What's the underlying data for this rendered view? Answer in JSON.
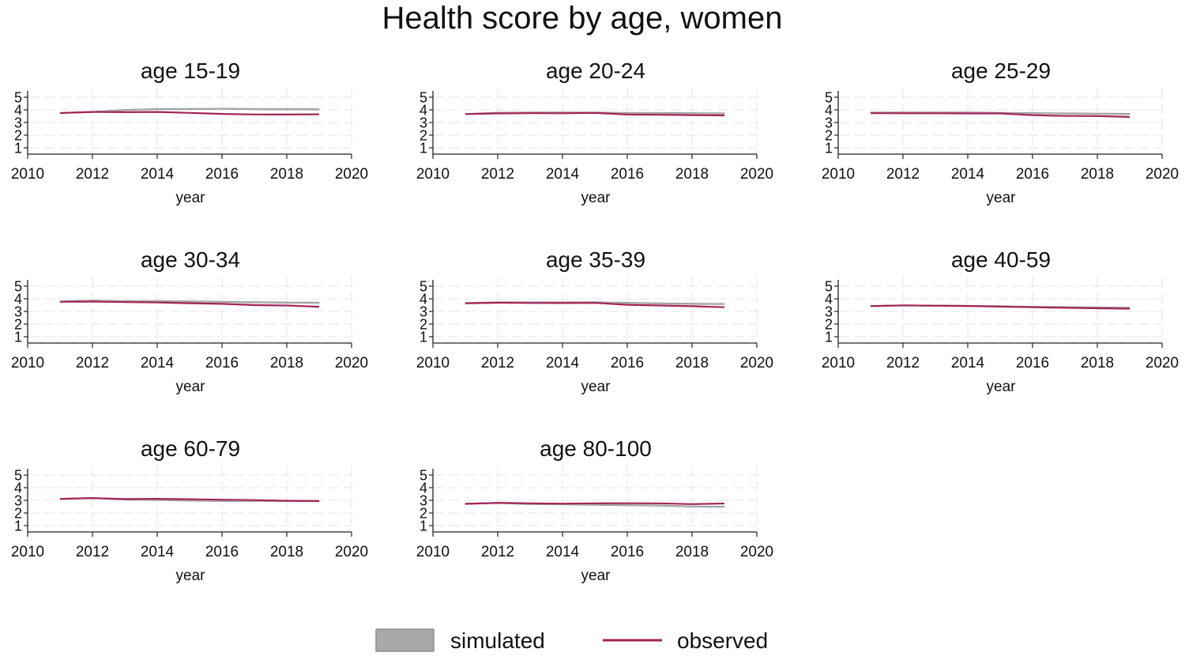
{
  "figure_title": "Health score by age, women",
  "legend": {
    "simulated_label": "simulated",
    "observed_label": "observed"
  },
  "colors": {
    "simulated_band": "#a9a9a9",
    "simulated_band_edge": "#8c8c8c",
    "observed_line": "#a3245a",
    "grid": "#e6e6e6",
    "axis": "#222222"
  },
  "chart_data": [
    {
      "type": "line",
      "title": "age 15-19",
      "xlabel": "year",
      "ylabel": "",
      "xlim": [
        2010,
        2020
      ],
      "ylim": [
        0.5,
        5.5
      ],
      "xticks": [
        2010,
        2012,
        2014,
        2016,
        2018,
        2020
      ],
      "yticks": [
        1,
        2,
        3,
        4,
        5
      ],
      "x": [
        2011,
        2012,
        2013,
        2014,
        2015,
        2016,
        2017,
        2018,
        2019
      ],
      "series": [
        {
          "name": "simulated",
          "kind": "band",
          "lower": [
            3.71,
            3.79,
            3.94,
            4.01,
            4.01,
            4.03,
            4.0,
            3.99,
            3.98
          ],
          "upper": [
            3.79,
            3.88,
            4.04,
            4.11,
            4.12,
            4.14,
            4.11,
            4.11,
            4.1
          ]
        },
        {
          "name": "observed",
          "kind": "line",
          "values": [
            3.75,
            3.84,
            3.82,
            3.84,
            3.76,
            3.68,
            3.64,
            3.63,
            3.65
          ]
        }
      ]
    },
    {
      "type": "line",
      "title": "age 20-24",
      "xlabel": "year",
      "ylabel": "",
      "xlim": [
        2010,
        2020
      ],
      "ylim": [
        0.5,
        5.5
      ],
      "xticks": [
        2010,
        2012,
        2014,
        2016,
        2018,
        2020
      ],
      "yticks": [
        1,
        2,
        3,
        4,
        5
      ],
      "x": [
        2011,
        2012,
        2013,
        2014,
        2015,
        2016,
        2017,
        2018,
        2019
      ],
      "series": [
        {
          "name": "simulated",
          "kind": "band",
          "lower": [
            3.63,
            3.7,
            3.72,
            3.73,
            3.73,
            3.69,
            3.69,
            3.68,
            3.66
          ],
          "upper": [
            3.72,
            3.82,
            3.84,
            3.84,
            3.83,
            3.8,
            3.8,
            3.79,
            3.77
          ]
        },
        {
          "name": "observed",
          "kind": "line",
          "values": [
            3.67,
            3.72,
            3.74,
            3.73,
            3.76,
            3.63,
            3.61,
            3.58,
            3.56
          ]
        }
      ]
    },
    {
      "type": "line",
      "title": "age 25-29",
      "xlabel": "year",
      "ylabel": "",
      "xlim": [
        2010,
        2020
      ],
      "ylim": [
        0.5,
        5.5
      ],
      "xticks": [
        2010,
        2012,
        2014,
        2016,
        2018,
        2020
      ],
      "yticks": [
        1,
        2,
        3,
        4,
        5
      ],
      "x": [
        2011,
        2012,
        2013,
        2014,
        2015,
        2016,
        2017,
        2018,
        2019
      ],
      "series": [
        {
          "name": "simulated",
          "kind": "band",
          "lower": [
            3.73,
            3.73,
            3.74,
            3.73,
            3.71,
            3.68,
            3.66,
            3.64,
            3.62
          ],
          "upper": [
            3.83,
            3.84,
            3.84,
            3.84,
            3.81,
            3.79,
            3.77,
            3.75,
            3.73
          ]
        },
        {
          "name": "observed",
          "kind": "line",
          "values": [
            3.74,
            3.73,
            3.73,
            3.72,
            3.72,
            3.58,
            3.52,
            3.51,
            3.44
          ]
        }
      ]
    },
    {
      "type": "line",
      "title": "age 30-34",
      "xlabel": "year",
      "ylabel": "",
      "xlim": [
        2010,
        2020
      ],
      "ylim": [
        0.5,
        5.5
      ],
      "xticks": [
        2010,
        2012,
        2014,
        2016,
        2018,
        2020
      ],
      "yticks": [
        1,
        2,
        3,
        4,
        5
      ],
      "x": [
        2011,
        2012,
        2013,
        2014,
        2015,
        2016,
        2017,
        2018,
        2019
      ],
      "series": [
        {
          "name": "simulated",
          "kind": "band",
          "lower": [
            3.73,
            3.78,
            3.76,
            3.76,
            3.74,
            3.71,
            3.67,
            3.64,
            3.63
          ],
          "upper": [
            3.83,
            3.9,
            3.86,
            3.86,
            3.84,
            3.81,
            3.78,
            3.75,
            3.74
          ]
        },
        {
          "name": "observed",
          "kind": "line",
          "values": [
            3.76,
            3.78,
            3.74,
            3.71,
            3.65,
            3.6,
            3.5,
            3.47,
            3.37
          ]
        }
      ]
    },
    {
      "type": "line",
      "title": "age 35-39",
      "xlabel": "year",
      "ylabel": "",
      "xlim": [
        2010,
        2020
      ],
      "ylim": [
        0.5,
        5.5
      ],
      "xticks": [
        2010,
        2012,
        2014,
        2016,
        2018,
        2020
      ],
      "yticks": [
        1,
        2,
        3,
        4,
        5
      ],
      "x": [
        2011,
        2012,
        2013,
        2014,
        2015,
        2016,
        2017,
        2018,
        2019
      ],
      "series": [
        {
          "name": "simulated",
          "kind": "band",
          "lower": [
            3.61,
            3.66,
            3.66,
            3.66,
            3.65,
            3.62,
            3.58,
            3.55,
            3.53
          ],
          "upper": [
            3.71,
            3.76,
            3.76,
            3.76,
            3.76,
            3.73,
            3.69,
            3.66,
            3.64
          ]
        },
        {
          "name": "observed",
          "kind": "line",
          "values": [
            3.64,
            3.69,
            3.67,
            3.66,
            3.68,
            3.52,
            3.47,
            3.41,
            3.33
          ]
        }
      ]
    },
    {
      "type": "line",
      "title": "age 40-59",
      "xlabel": "year",
      "ylabel": "",
      "xlim": [
        2010,
        2020
      ],
      "ylim": [
        0.5,
        5.5
      ],
      "xticks": [
        2010,
        2012,
        2014,
        2016,
        2018,
        2020
      ],
      "yticks": [
        1,
        2,
        3,
        4,
        5
      ],
      "x": [
        2011,
        2012,
        2013,
        2014,
        2015,
        2016,
        2017,
        2018,
        2019
      ],
      "series": [
        {
          "name": "simulated",
          "kind": "band",
          "lower": [
            3.38,
            3.42,
            3.41,
            3.39,
            3.35,
            3.31,
            3.28,
            3.26,
            3.24
          ],
          "upper": [
            3.48,
            3.52,
            3.51,
            3.49,
            3.45,
            3.41,
            3.38,
            3.36,
            3.34
          ]
        },
        {
          "name": "observed",
          "kind": "line",
          "values": [
            3.42,
            3.48,
            3.45,
            3.43,
            3.38,
            3.33,
            3.29,
            3.25,
            3.22
          ]
        }
      ]
    },
    {
      "type": "line",
      "title": "age 60-79",
      "xlabel": "year",
      "ylabel": "",
      "xlim": [
        2010,
        2020
      ],
      "ylim": [
        0.5,
        5.5
      ],
      "xticks": [
        2010,
        2012,
        2014,
        2016,
        2018,
        2020
      ],
      "yticks": [
        1,
        2,
        3,
        4,
        5
      ],
      "x": [
        2011,
        2012,
        2013,
        2014,
        2015,
        2016,
        2017,
        2018,
        2019
      ],
      "series": [
        {
          "name": "simulated",
          "kind": "band",
          "lower": [
            3.06,
            3.13,
            3.02,
            2.98,
            2.93,
            2.9,
            2.91,
            2.9,
            2.89
          ],
          "upper": [
            3.16,
            3.23,
            3.12,
            3.08,
            3.03,
            3.0,
            3.01,
            3.0,
            2.99
          ]
        },
        {
          "name": "observed",
          "kind": "line",
          "values": [
            3.11,
            3.18,
            3.1,
            3.12,
            3.09,
            3.05,
            3.02,
            2.97,
            2.95
          ]
        }
      ]
    },
    {
      "type": "line",
      "title": "age 80-100",
      "xlabel": "year",
      "ylabel": "",
      "xlim": [
        2010,
        2020
      ],
      "ylim": [
        0.5,
        5.5
      ],
      "xticks": [
        2010,
        2012,
        2014,
        2016,
        2018,
        2020
      ],
      "yticks": [
        1,
        2,
        3,
        4,
        5
      ],
      "x": [
        2011,
        2012,
        2013,
        2014,
        2015,
        2016,
        2017,
        2018,
        2019
      ],
      "series": [
        {
          "name": "simulated",
          "kind": "band",
          "lower": [
            2.68,
            2.74,
            2.66,
            2.64,
            2.6,
            2.56,
            2.54,
            2.46,
            2.44
          ],
          "upper": [
            2.78,
            2.84,
            2.76,
            2.74,
            2.7,
            2.66,
            2.64,
            2.56,
            2.54
          ]
        },
        {
          "name": "observed",
          "kind": "line",
          "values": [
            2.72,
            2.8,
            2.76,
            2.74,
            2.76,
            2.77,
            2.76,
            2.7,
            2.75
          ]
        }
      ]
    }
  ]
}
